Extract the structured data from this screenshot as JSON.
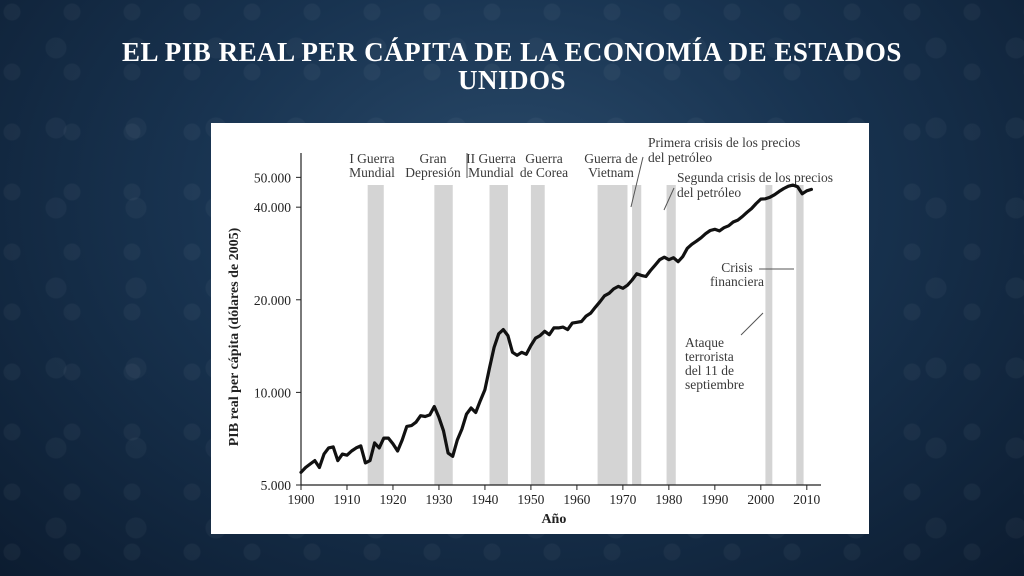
{
  "slide": {
    "title_line1": "EL PIB REAL PER CÁPITA DE LA ECONOMÍA DE ESTADOS",
    "title_line2": "UNIDOS"
  },
  "chart_data": {
    "type": "line",
    "xlabel": "Año",
    "ylabel": "PIB real per cápita (dólares de 2005)",
    "y_scale": "log",
    "xlim": [
      1900,
      2012
    ],
    "ylim": [
      5000,
      60000
    ],
    "x_ticks": [
      1900,
      1910,
      1920,
      1930,
      1940,
      1950,
      1960,
      1970,
      1980,
      1990,
      2000,
      2010
    ],
    "y_ticks": [
      {
        "value": 5000,
        "label": "5.000"
      },
      {
        "value": 10000,
        "label": "10.000"
      },
      {
        "value": 20000,
        "label": "20.000"
      },
      {
        "value": 40000,
        "label": "40.000"
      },
      {
        "value": 50000,
        "label": "50.000"
      }
    ],
    "line_color": "#111111",
    "band_color": "#d4d4d4",
    "series": [
      {
        "x": [
          1900,
          1901,
          1902,
          1903,
          1904,
          1905,
          1906,
          1907,
          1908,
          1909,
          1910,
          1911,
          1912,
          1913,
          1914,
          1915,
          1916,
          1917,
          1918,
          1919,
          1920,
          1921,
          1922,
          1923,
          1924,
          1925,
          1926,
          1927,
          1928,
          1929,
          1930,
          1931,
          1932,
          1933,
          1934,
          1935,
          1936,
          1937,
          1938,
          1939,
          1940,
          1941,
          1942,
          1943,
          1944,
          1945,
          1946,
          1947,
          1948,
          1949,
          1950,
          1951,
          1952,
          1953,
          1954,
          1955,
          1956,
          1957,
          1958,
          1959,
          1960,
          1961,
          1962,
          1963,
          1964,
          1965,
          1966,
          1967,
          1968,
          1969,
          1970,
          1971,
          1972,
          1973,
          1974,
          1975,
          1976,
          1977,
          1978,
          1979,
          1980,
          1981,
          1982,
          1983,
          1984,
          1985,
          1986,
          1987,
          1988,
          1989,
          1990,
          1991,
          1992,
          1993,
          1994,
          1995,
          1996,
          1997,
          1998,
          1999,
          2000,
          2001,
          2002,
          2003,
          2004,
          2005,
          2006,
          2007,
          2008,
          2009,
          2010,
          2011
        ],
        "values": [
          5500,
          5700,
          5850,
          6000,
          5700,
          6300,
          6600,
          6650,
          6000,
          6300,
          6250,
          6450,
          6600,
          6700,
          5900,
          6000,
          6850,
          6600,
          7100,
          7100,
          6800,
          6450,
          7000,
          7750,
          7800,
          8000,
          8400,
          8350,
          8450,
          9000,
          8300,
          7500,
          6350,
          6200,
          7000,
          7600,
          8500,
          8900,
          8600,
          9400,
          10200,
          12000,
          14000,
          15500,
          16000,
          15300,
          13500,
          13200,
          13500,
          13300,
          14200,
          15000,
          15300,
          15800,
          15400,
          16200,
          16200,
          16300,
          16000,
          16800,
          16900,
          17000,
          17700,
          18100,
          18900,
          19700,
          20600,
          21000,
          21700,
          22100,
          21800,
          22300,
          23200,
          24300,
          24000,
          23800,
          24900,
          25900,
          27000,
          27500,
          27000,
          27400,
          26600,
          27600,
          29400,
          30300,
          31000,
          31800,
          32800,
          33600,
          33900,
          33500,
          34300,
          34800,
          35800,
          36300,
          37300,
          38500,
          39600,
          41100,
          42500,
          42600,
          43100,
          43900,
          45000,
          46000,
          46800,
          47200,
          46600,
          44200,
          45200,
          45700
        ]
      }
    ],
    "bands": [
      {
        "label_lines": [
          "I Guerra",
          "Mundial"
        ],
        "start": 1914.5,
        "end": 1918
      },
      {
        "label_lines": [
          "Gran",
          "Depresión"
        ],
        "start": 1929,
        "end": 1933
      },
      {
        "label_lines": [
          "II Guerra",
          "Mundial"
        ],
        "start": 1941,
        "end": 1945
      },
      {
        "label_lines": [
          "Guerra",
          "de Corea"
        ],
        "start": 1950,
        "end": 1953
      },
      {
        "label_lines": [
          "Guerra de",
          "Vietnam"
        ],
        "start": 1964.5,
        "end": 1971
      },
      {
        "label_lines": [
          "Primera crisis de los precios",
          "del petróleo"
        ],
        "start": 1972,
        "end": 1974
      },
      {
        "label_lines": [
          "Segunda crisis de los precios",
          "del petróleo"
        ],
        "start": 1979.5,
        "end": 1981.5
      },
      {
        "label_lines": [
          "Ataque",
          "terrorista",
          "del 11 de",
          "septiembre"
        ],
        "start": 2001,
        "end": 2002.5
      },
      {
        "label_lines": [
          "Crisis",
          "financiera"
        ],
        "start": 2007.7,
        "end": 2009.3
      }
    ]
  }
}
